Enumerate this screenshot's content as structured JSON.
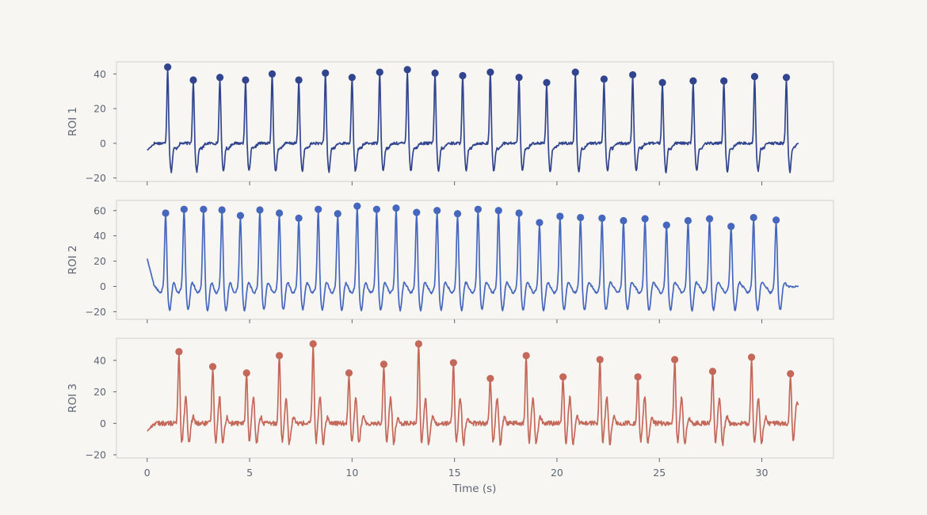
{
  "chart_data": {
    "type": "line",
    "xlabel": "Time (s)",
    "xlim": [
      -1.5,
      33.5
    ],
    "xticks": [
      0,
      5,
      10,
      15,
      20,
      25,
      30
    ],
    "panels": [
      {
        "ylabel": "ROI 1",
        "color": "#31458f",
        "ylim": [
          -22,
          47
        ],
        "yticks": [
          -20,
          0,
          20,
          40
        ],
        "baseline_range": [
          0,
          31.8
        ],
        "start_value": -4,
        "end_value": 0,
        "peaks": [
          {
            "t": 1.0,
            "v": 44
          },
          {
            "t": 2.25,
            "v": 36.5
          },
          {
            "t": 3.55,
            "v": 38
          },
          {
            "t": 4.8,
            "v": 36.5
          },
          {
            "t": 6.1,
            "v": 40
          },
          {
            "t": 7.4,
            "v": 36.5
          },
          {
            "t": 8.7,
            "v": 40.5
          },
          {
            "t": 10.0,
            "v": 38
          },
          {
            "t": 11.35,
            "v": 41
          },
          {
            "t": 12.7,
            "v": 42.5
          },
          {
            "t": 14.05,
            "v": 40.5
          },
          {
            "t": 15.4,
            "v": 39
          },
          {
            "t": 16.75,
            "v": 41
          },
          {
            "t": 18.15,
            "v": 38
          },
          {
            "t": 19.5,
            "v": 35
          },
          {
            "t": 20.9,
            "v": 41
          },
          {
            "t": 22.3,
            "v": 37
          },
          {
            "t": 23.7,
            "v": 39.5
          },
          {
            "t": 25.15,
            "v": 35
          },
          {
            "t": 26.65,
            "v": 36
          },
          {
            "t": 28.15,
            "v": 36
          },
          {
            "t": 29.65,
            "v": 38.5
          },
          {
            "t": 31.2,
            "v": 38
          }
        ]
      },
      {
        "ylabel": "ROI 2",
        "color": "#4567bd",
        "ylim": [
          -26,
          68
        ],
        "yticks": [
          -20,
          0,
          20,
          40,
          60
        ],
        "baseline_range": [
          0,
          31.8
        ],
        "start_value": 22,
        "end_value": 0,
        "peaks": [
          {
            "t": 0.9,
            "v": 58
          },
          {
            "t": 1.8,
            "v": 61
          },
          {
            "t": 2.75,
            "v": 61
          },
          {
            "t": 3.65,
            "v": 60.5
          },
          {
            "t": 4.55,
            "v": 56
          },
          {
            "t": 5.5,
            "v": 60.5
          },
          {
            "t": 6.45,
            "v": 58
          },
          {
            "t": 7.4,
            "v": 54
          },
          {
            "t": 8.35,
            "v": 61
          },
          {
            "t": 9.3,
            "v": 57.5
          },
          {
            "t": 10.25,
            "v": 63.5
          },
          {
            "t": 11.2,
            "v": 61
          },
          {
            "t": 12.15,
            "v": 62
          },
          {
            "t": 13.15,
            "v": 58.5
          },
          {
            "t": 14.15,
            "v": 60
          },
          {
            "t": 15.15,
            "v": 57.5
          },
          {
            "t": 16.15,
            "v": 61
          },
          {
            "t": 17.15,
            "v": 60
          },
          {
            "t": 18.15,
            "v": 58
          },
          {
            "t": 19.15,
            "v": 50.5
          },
          {
            "t": 20.15,
            "v": 55.5
          },
          {
            "t": 21.15,
            "v": 54.5
          },
          {
            "t": 22.2,
            "v": 54
          },
          {
            "t": 23.25,
            "v": 52
          },
          {
            "t": 24.3,
            "v": 53.5
          },
          {
            "t": 25.35,
            "v": 48.5
          },
          {
            "t": 26.4,
            "v": 52
          },
          {
            "t": 27.45,
            "v": 53.5
          },
          {
            "t": 28.5,
            "v": 47.5
          },
          {
            "t": 29.6,
            "v": 54.5
          },
          {
            "t": 30.7,
            "v": 52.5
          }
        ]
      },
      {
        "ylabel": "ROI 3",
        "color": "#c4685a",
        "ylim": [
          -22,
          54
        ],
        "yticks": [
          -20,
          0,
          20,
          40
        ],
        "baseline_range": [
          0,
          31.8
        ],
        "start_value": -5,
        "end_value": 12,
        "peaks": [
          {
            "t": 1.55,
            "v": 45.5
          },
          {
            "t": 3.2,
            "v": 36
          },
          {
            "t": 4.85,
            "v": 32
          },
          {
            "t": 6.45,
            "v": 43
          },
          {
            "t": 8.1,
            "v": 50.5
          },
          {
            "t": 9.85,
            "v": 32
          },
          {
            "t": 11.55,
            "v": 37.5
          },
          {
            "t": 13.25,
            "v": 50.5
          },
          {
            "t": 14.95,
            "v": 38.5
          },
          {
            "t": 16.75,
            "v": 28.5
          },
          {
            "t": 18.5,
            "v": 43
          },
          {
            "t": 20.3,
            "v": 29.5
          },
          {
            "t": 22.1,
            "v": 40.5
          },
          {
            "t": 23.95,
            "v": 29.5
          },
          {
            "t": 25.75,
            "v": 40.5
          },
          {
            "t": 27.6,
            "v": 33
          },
          {
            "t": 29.5,
            "v": 42
          },
          {
            "t": 31.4,
            "v": 31.5
          }
        ]
      }
    ]
  }
}
